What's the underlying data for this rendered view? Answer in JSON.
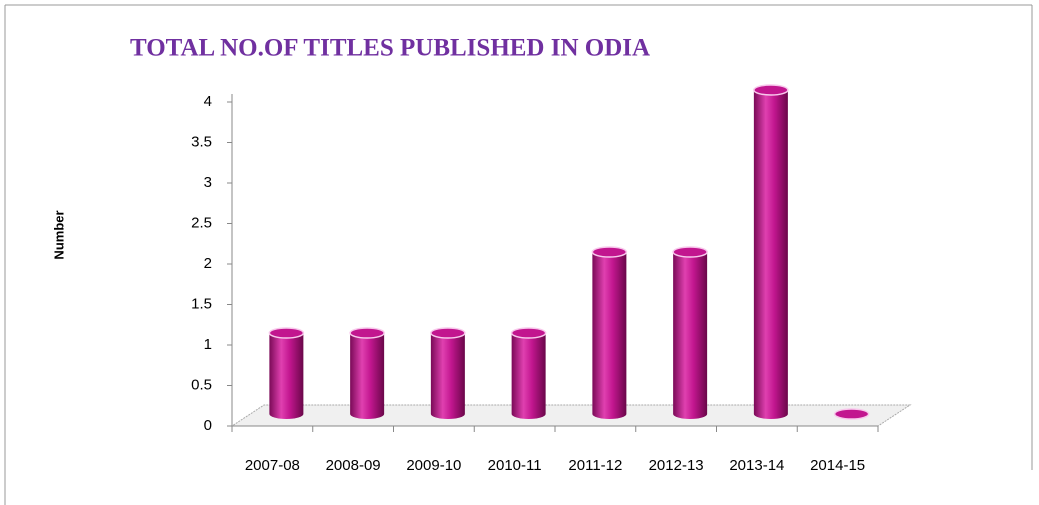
{
  "chart_data": {
    "type": "bar3d",
    "title": "TOTAL NO.OF TITLES PUBLISHED IN ODIA",
    "y_label": "Number",
    "categories": [
      "2007-08",
      "2008-09",
      "2009-10",
      "2010-11",
      "2011-12",
      "2012-13",
      "2013-14",
      "2014-15"
    ],
    "values": [
      1,
      1,
      1,
      1,
      2,
      2,
      4,
      0
    ],
    "color": "#c2168f",
    "ylim": [
      0,
      4
    ],
    "yticks": [
      0,
      0.5,
      1,
      1.5,
      2,
      2.5,
      3,
      3.5,
      4
    ],
    "grid": false
  }
}
